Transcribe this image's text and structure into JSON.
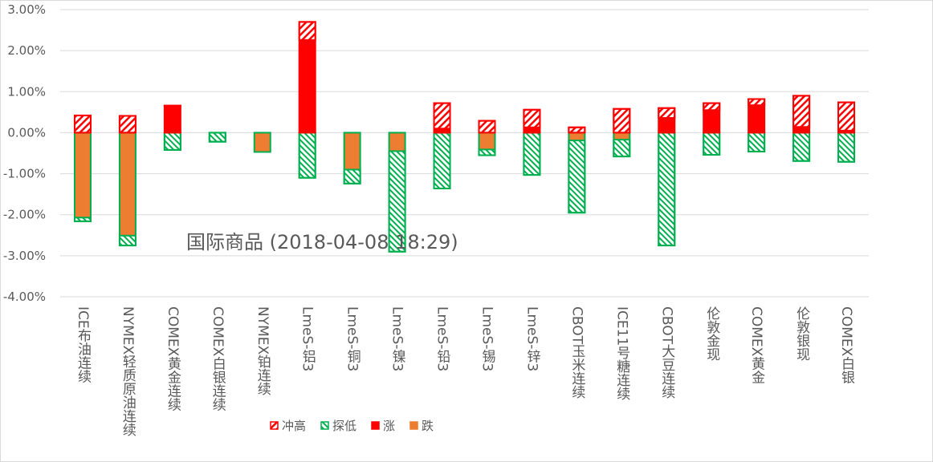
{
  "chart_data": {
    "type": "bar",
    "stacked": true,
    "title": "国际商品 (2018-04-08 18:29)",
    "xlabel": "",
    "ylabel": "",
    "ylim": [
      -4,
      3
    ],
    "yticks": [
      "-4.00%",
      "-3.00%",
      "-2.00%",
      "-1.00%",
      "0.00%",
      "1.00%",
      "2.00%",
      "3.00%"
    ],
    "grid": true,
    "legend_position": "bottom",
    "categories": [
      "ICE布油连续",
      "NYMEX轻质原油连续",
      "COMEX黄金连续",
      "COMEX白银连续",
      "NYMEX铂连续",
      "LmeS-铝3",
      "LmeS-铜3",
      "LmeS-镍3",
      "LmeS-铅3",
      "LmeS-锡3",
      "LmeS-锌3",
      "CBOT玉米连续",
      "ICE11号糖连续",
      "CBOT大豆连续",
      "伦敦金现",
      "COMEX黄金",
      "伦敦银现",
      "COMEX白银"
    ],
    "series": [
      {
        "name": "冲高",
        "key": "high",
        "color": "#ff0000",
        "pattern": "hatch-up",
        "values": [
          0.42,
          0.41,
          0.01,
          0,
          0,
          0.44,
          0,
          0,
          0.62,
          0.29,
          0.43,
          0.13,
          0.58,
          0.24,
          0.17,
          0.15,
          0.76,
          0.69
        ]
      },
      {
        "name": "探低",
        "key": "low",
        "color": "#00b050",
        "pattern": "hatch-down",
        "values": [
          -0.09,
          -0.24,
          -0.42,
          -0.22,
          0,
          -1.1,
          -0.34,
          -2.45,
          -1.36,
          -0.14,
          -1.03,
          -1.76,
          -0.41,
          -2.75,
          -0.54,
          -0.46,
          -0.69,
          -0.71
        ]
      },
      {
        "name": "涨",
        "key": "rise",
        "color": "#ff0000",
        "pattern": "solid",
        "values": [
          0,
          0,
          0.65,
          0,
          0,
          2.26,
          0,
          0,
          0.1,
          0,
          0.13,
          0,
          0,
          0.36,
          0.55,
          0.67,
          0.14,
          0.05
        ]
      },
      {
        "name": "跌",
        "key": "fall",
        "color": "#ed7d31",
        "pattern": "solid",
        "values": [
          -2.07,
          -2.51,
          0,
          0,
          -0.47,
          0,
          -0.9,
          -0.45,
          0,
          -0.41,
          0,
          -0.19,
          -0.17,
          0,
          0,
          0,
          0,
          0
        ]
      }
    ]
  }
}
